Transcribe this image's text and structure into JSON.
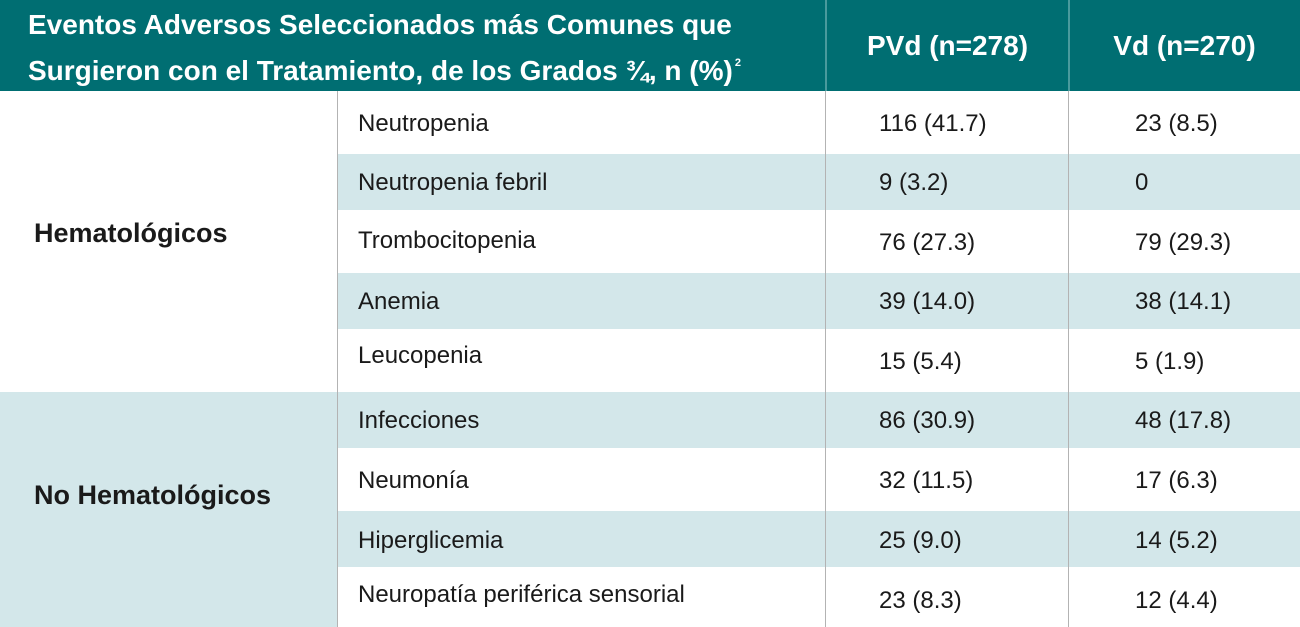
{
  "header": {
    "title_line1": "Eventos Adversos Seleccionados más Comunes que",
    "title_line2": "Surgieron con el Tratamiento, de los Grados ¾, n (%)",
    "title_footnote": "2",
    "col_pvd": "PVd (n=278)",
    "col_vd": "Vd (n=270)"
  },
  "categories": {
    "hematologic": "Hematológicos",
    "non_hematologic": "No Hematológicos"
  },
  "rows": [
    {
      "event": "Neutropenia",
      "pvd": "116 (41.7)",
      "vd": "23 (8.5)"
    },
    {
      "event": "Neutropenia febril",
      "pvd": "9 (3.2)",
      "vd": "0"
    },
    {
      "event": "Trombocitopenia",
      "pvd": "76 (27.3)",
      "vd": "79 (29.3)"
    },
    {
      "event": "Anemia",
      "pvd": "39 (14.0)",
      "vd": "38 (14.1)"
    },
    {
      "event": "Leucopenia",
      "pvd": "15 (5.4)",
      "vd": "5 (1.9)"
    },
    {
      "event": "Infecciones",
      "pvd": "86 (30.9)",
      "vd": "48 (17.8)"
    },
    {
      "event": "Neumonía",
      "pvd": "32 (11.5)",
      "vd": "17 (6.3)"
    },
    {
      "event": "Hiperglicemia",
      "pvd": "25 (9.0)",
      "vd": "14 (5.2)"
    },
    {
      "event": "Neuropatía periférica sensorial",
      "pvd": "23 (8.3)",
      "vd": "12 (4.4)"
    }
  ]
}
